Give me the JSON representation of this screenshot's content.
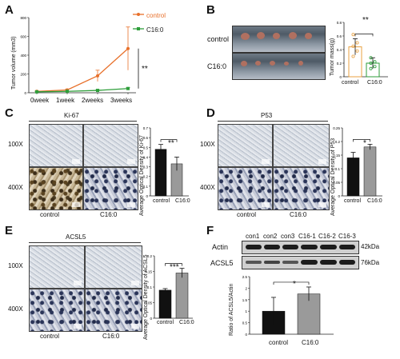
{
  "panels": {
    "A": {
      "label": "A",
      "ylabel": "Tumor volume (mm3)",
      "legend": [
        "control",
        "C16:0"
      ],
      "sig": "**",
      "xticks": [
        "0week",
        "1week",
        "2weeks",
        "3weeks"
      ]
    },
    "B": {
      "label": "B",
      "row1": "control",
      "row2": "C16:0",
      "ylabel": "Tumor mass(g)",
      "sig": "**",
      "xcats": [
        "control",
        "C16:0"
      ]
    },
    "C": {
      "label": "C",
      "title": "Ki-67",
      "mag1": "100X",
      "mag2": "400X",
      "col1": "control",
      "col2": "C16:0",
      "ylabel": "Average Optical Density of Ki-67",
      "sig": "**",
      "xcats": [
        "control",
        "C16:0"
      ]
    },
    "D": {
      "label": "D",
      "title": "P53",
      "mag1": "100X",
      "mag2": "400X",
      "col1": "control",
      "col2": "C16:0",
      "ylabel": "Average Optical Density of P53",
      "sig": "*",
      "xcats": [
        "control",
        "C16:0"
      ]
    },
    "E": {
      "label": "E",
      "title": "ACSL5",
      "mag1": "100X",
      "mag2": "400X",
      "col1": "control",
      "col2": "C16:0",
      "ylabel": "Average Optical Density of ACSL5",
      "sig": "***",
      "xcats": [
        "control",
        "C16:0"
      ]
    },
    "F": {
      "label": "F",
      "lanes": [
        "con1",
        "con2",
        "con3",
        "C16-1",
        "C16-2",
        "C16-3"
      ],
      "row1": "Actin",
      "row2": "ACSL5",
      "kda1": "42kDa",
      "kda2": "76kDa",
      "ylabel": "Ratio of ACSL5/Actin",
      "sig": "*",
      "xcats": [
        "control",
        "C16:0"
      ]
    }
  },
  "colors": {
    "control": "#e8702a",
    "c16": "#2e9e3a",
    "bar_control": "#111111",
    "bar_c16": "#9a9a9a",
    "scatter_ctrl": "#e8a040",
    "scatter_c16": "#2e9e3a"
  },
  "chart_data": [
    {
      "id": "A",
      "type": "line",
      "x": [
        "0week",
        "1week",
        "2weeks",
        "3weeks"
      ],
      "series": [
        {
          "name": "control",
          "values": [
            15,
            30,
            180,
            470
          ],
          "err": [
            5,
            10,
            60,
            230
          ]
        },
        {
          "name": "C16:0",
          "values": [
            10,
            15,
            25,
            45
          ],
          "err": [
            3,
            4,
            6,
            10
          ]
        }
      ],
      "ylim": [
        0,
        800
      ],
      "yticks": [
        0,
        200,
        400,
        600,
        800
      ]
    },
    {
      "id": "B",
      "type": "bar",
      "categories": [
        "control",
        "C16:0"
      ],
      "values": [
        0.44,
        0.2
      ],
      "err": [
        0.12,
        0.08
      ],
      "points": [
        [
          0.62,
          0.5,
          0.45,
          0.38,
          0.3
        ],
        [
          0.28,
          0.22,
          0.2,
          0.15,
          0.12
        ]
      ],
      "ylim": [
        0,
        0.8
      ],
      "yticks": [
        0,
        0.2,
        0.4,
        0.6,
        0.8
      ]
    },
    {
      "id": "C",
      "type": "bar",
      "categories": [
        "control",
        "C16:0"
      ],
      "values": [
        0.48,
        0.33
      ],
      "err": [
        0.05,
        0.07
      ],
      "ylim": [
        0,
        0.7
      ],
      "yticks": [
        0,
        0.1,
        0.2,
        0.3,
        0.4,
        0.5,
        0.6,
        0.7
      ]
    },
    {
      "id": "D",
      "type": "bar",
      "categories": [
        "control",
        "C16:0"
      ],
      "values": [
        0.14,
        0.18
      ],
      "err": [
        0.02,
        0.01
      ],
      "ylim": [
        0,
        0.25
      ],
      "yticks": [
        0,
        0.05,
        0.1,
        0.15,
        0.2,
        0.25
      ]
    },
    {
      "id": "E",
      "type": "bar",
      "categories": [
        "control",
        "C16:0"
      ],
      "values": [
        0.09,
        0.145
      ],
      "err": [
        0.005,
        0.015
      ],
      "ylim": [
        0,
        0.2
      ],
      "yticks": [
        0,
        0.05,
        0.1,
        0.15,
        0.2
      ]
    },
    {
      "id": "F",
      "type": "bar",
      "categories": [
        "control",
        "C16:0"
      ],
      "values": [
        1.0,
        1.75
      ],
      "err": [
        0.6,
        0.3
      ],
      "ylim": [
        0,
        2.5
      ],
      "yticks": [
        0,
        0.5,
        1,
        1.5,
        2,
        2.5
      ]
    }
  ]
}
